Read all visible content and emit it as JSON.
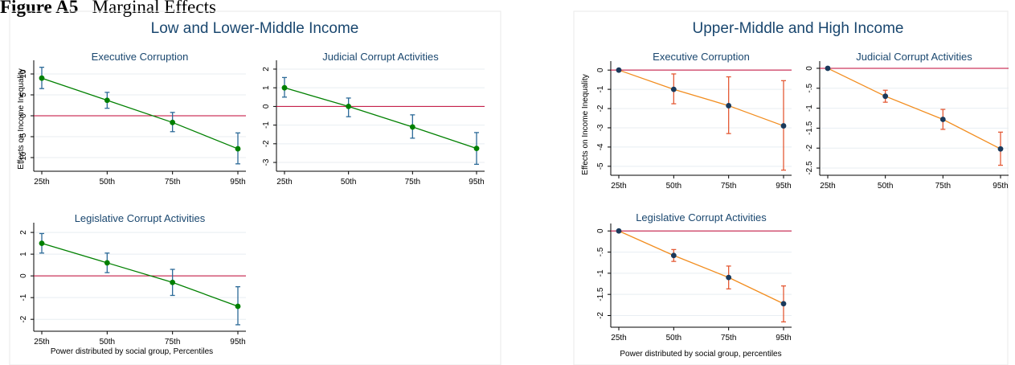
{
  "figure": {
    "label": "Figure A5",
    "caption": "Marginal Effects"
  },
  "colors": {
    "navy": "#1a476f",
    "red_ref": "#c10534",
    "green_line": "#008000",
    "green_ci": "#2c6a98",
    "orange_line": "#f28d1f",
    "orange_ci": "#e45a35",
    "point_navy": "#1a3a5c",
    "grid": "#e8eef2",
    "frame": "#eaeaea"
  },
  "panels": [
    {
      "title": "Low and Lower-Middle Income",
      "ylabel": "Effects on Income Inequality",
      "xlabel": "Power distributed by social group, Percentiles",
      "style": "green"
    },
    {
      "title": "Upper-Middle and High Income",
      "ylabel": "Effects on Income Inequality",
      "xlabel": "Power distributed by social group, percentiles",
      "style": "orange"
    }
  ],
  "chart_data": [
    {
      "type": "line",
      "panel": 0,
      "title": "Executive Corruption",
      "categories": [
        "25th",
        "50th",
        "75th",
        "95th"
      ],
      "values": [
        9,
        3.7,
        -1.6,
        -7.9
      ],
      "ci_low": [
        6.5,
        1.8,
        -3.8,
        -11.5
      ],
      "ci_high": [
        11.6,
        5.6,
        0.8,
        -4.1
      ],
      "ylim": [
        -12.5,
        12.5
      ],
      "yticks": [
        -10,
        -5,
        0,
        5,
        10
      ],
      "ylabel": "Effects on Income Inequality",
      "xlabel": "",
      "ref": 0,
      "grid": true
    },
    {
      "type": "line",
      "panel": 0,
      "title": "Judicial Corrupt Activities",
      "categories": [
        "25th",
        "50th",
        "75th",
        "95th"
      ],
      "values": [
        1.0,
        0,
        -1.1,
        -2.25
      ],
      "ci_low": [
        0.5,
        -0.55,
        -1.7,
        -3.1
      ],
      "ci_high": [
        1.55,
        0.45,
        -0.45,
        -1.4
      ],
      "ylim": [
        -3.3,
        2.3
      ],
      "yticks": [
        -3,
        -2,
        -1,
        0,
        1,
        2
      ],
      "ylabel": "",
      "xlabel": "",
      "ref": 0,
      "grid": true
    },
    {
      "type": "line",
      "panel": 0,
      "title": "Legislative Corrupt Activities",
      "categories": [
        "25th",
        "50th",
        "75th",
        "95th"
      ],
      "values": [
        1.5,
        0.6,
        -0.3,
        -1.4
      ],
      "ci_low": [
        1.05,
        0.15,
        -0.9,
        -2.25
      ],
      "ci_high": [
        1.95,
        1.05,
        0.3,
        -0.5
      ],
      "ylim": [
        -2.4,
        2.3
      ],
      "yticks": [
        -2,
        -1,
        0,
        1,
        2
      ],
      "ylabel": "",
      "xlabel": "Power distributed by social group, Percentiles",
      "ref": 0,
      "grid": true
    },
    {
      "type": "line",
      "panel": 1,
      "title": "Executive Corruption",
      "categories": [
        "25th",
        "50th",
        "75th",
        "95th"
      ],
      "values": [
        0,
        -1.0,
        -1.85,
        -2.9
      ],
      "ci_low": [
        0,
        -1.75,
        -3.3,
        -5.2
      ],
      "ci_high": [
        0,
        -0.2,
        -0.35,
        -0.55
      ],
      "ylim": [
        -5.3,
        0.3
      ],
      "yticks": [
        -5,
        -4,
        -3,
        -2,
        -1,
        0
      ],
      "ylabel": "Effects on Income Inequality",
      "xlabel": "",
      "ref": 0,
      "grid": true
    },
    {
      "type": "line",
      "panel": 1,
      "title": "Judicial Corrupt Activities",
      "categories": [
        "25th",
        "50th",
        "75th",
        "95th"
      ],
      "values": [
        0,
        -0.7,
        -1.28,
        -2.02
      ],
      "ci_low": [
        0,
        -0.85,
        -1.53,
        -2.43
      ],
      "ci_high": [
        0,
        -0.55,
        -1.03,
        -1.6
      ],
      "ylim": [
        -2.6,
        0.1
      ],
      "yticks": [
        -2.5,
        -2,
        -1.5,
        -1,
        -0.5,
        0
      ],
      "ylabel": "",
      "xlabel": "",
      "ref": 0,
      "grid": true
    },
    {
      "type": "line",
      "panel": 1,
      "title": "Legislative Corrupt Activities",
      "categories": [
        "25th",
        "50th",
        "75th",
        "95th"
      ],
      "values": [
        0,
        -0.58,
        -1.1,
        -1.72
      ],
      "ci_low": [
        0,
        -0.72,
        -1.37,
        -2.15
      ],
      "ci_high": [
        0,
        -0.44,
        -0.83,
        -1.3
      ],
      "ylim": [
        -2.2,
        0.1
      ],
      "yticks": [
        -2,
        -1.5,
        -1,
        -0.5,
        0
      ],
      "ylabel": "",
      "xlabel": "Power distributed by social group, percentiles",
      "ref": 0,
      "grid": true
    }
  ]
}
